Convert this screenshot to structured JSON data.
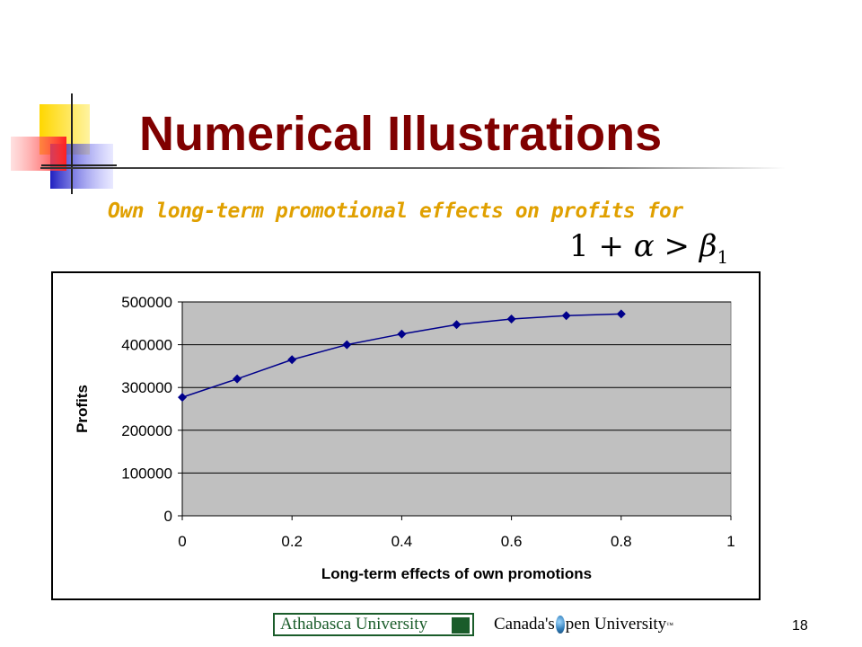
{
  "slide": {
    "title": "Numerical Illustrations",
    "subtitle": "Own long-term promotional effects on profits for",
    "formula": {
      "lhs": "1 + ",
      "alpha": "α",
      "op": " > ",
      "beta": "β",
      "sub": "1"
    },
    "page_number": "18"
  },
  "footer": {
    "left_logo_text": "Athabasca University",
    "right_logo_prefix": "Canada's",
    "right_logo_suffix": "pen University",
    "right_logo_tm": "™"
  },
  "colors": {
    "title": "#800000",
    "subtitle": "#e0a000",
    "plot_bg": "#c0c0c0",
    "series": "#00008b"
  },
  "chart_data": {
    "type": "line",
    "title": "",
    "xlabel": "Long-term effects of own promotions",
    "ylabel": "Profits",
    "xlim": [
      0,
      1
    ],
    "ylim": [
      0,
      500000
    ],
    "x_ticks": [
      0,
      0.2,
      0.4,
      0.6,
      0.8,
      1
    ],
    "y_ticks": [
      0,
      100000,
      200000,
      300000,
      400000,
      500000
    ],
    "x_tick_labels": [
      "0",
      "0.2",
      "0.4",
      "0.6",
      "0.8",
      "1"
    ],
    "y_tick_labels": [
      "0",
      "100000",
      "200000",
      "300000",
      "400000",
      "500000"
    ],
    "grid": "horizontal",
    "legend": "none",
    "series": [
      {
        "x": [
          0,
          0.1,
          0.2,
          0.3,
          0.4,
          0.5,
          0.6,
          0.7,
          0.8
        ],
        "values": [
          277000,
          320000,
          365000,
          400000,
          425000,
          447000,
          460000,
          468000,
          472000
        ]
      }
    ]
  }
}
